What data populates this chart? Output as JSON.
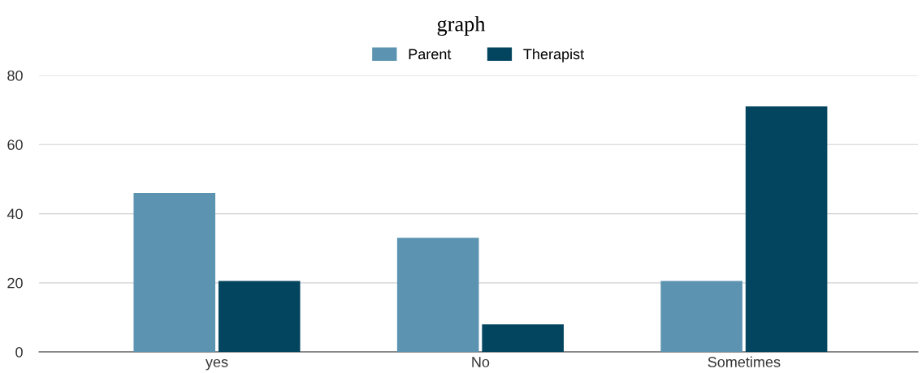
{
  "chart_data": {
    "type": "bar",
    "title": "graph",
    "categories": [
      "yes",
      "No",
      "Sometimes"
    ],
    "series": [
      {
        "name": "Parent",
        "color": "#5b93b0",
        "values": [
          46,
          33,
          20.5
        ]
      },
      {
        "name": "Therapist",
        "color": "#03445f",
        "values": [
          20.5,
          8,
          71
        ]
      }
    ],
    "ylim": [
      0,
      80
    ],
    "yticks": [
      0,
      20,
      40,
      60,
      80
    ],
    "grid": "y",
    "legend": "top"
  }
}
